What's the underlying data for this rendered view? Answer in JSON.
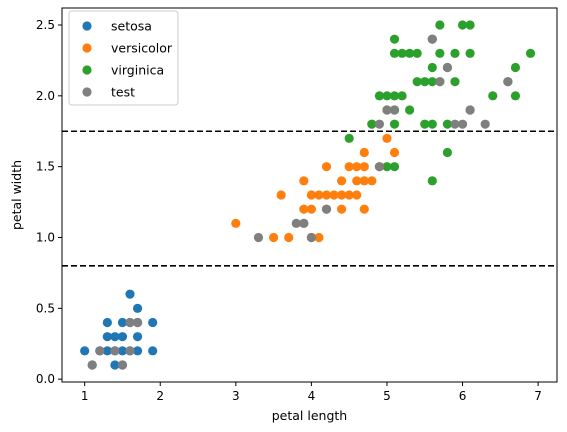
{
  "chart_data": {
    "type": "scatter",
    "title": "",
    "xlabel": "petal length",
    "ylabel": "petal width",
    "xlim": [
      0.7,
      7.25
    ],
    "ylim": [
      -0.02,
      2.62
    ],
    "xticks": [
      1,
      2,
      3,
      4,
      5,
      6,
      7
    ],
    "yticks": [
      0.0,
      0.5,
      1.0,
      1.5,
      2.0,
      2.5
    ],
    "grid": false,
    "legend": "top-left",
    "hlines": [
      {
        "y": 0.8,
        "style": "dashed",
        "color": "#000000"
      },
      {
        "y": 1.75,
        "style": "dashed",
        "color": "#000000"
      }
    ],
    "series": [
      {
        "name": "setosa",
        "color": "#1f77b4",
        "points": [
          [
            1.0,
            0.2
          ],
          [
            1.3,
            0.2
          ],
          [
            1.3,
            0.3
          ],
          [
            1.3,
            0.4
          ],
          [
            1.4,
            0.1
          ],
          [
            1.4,
            0.2
          ],
          [
            1.4,
            0.3
          ],
          [
            1.5,
            0.1
          ],
          [
            1.5,
            0.2
          ],
          [
            1.5,
            0.3
          ],
          [
            1.5,
            0.4
          ],
          [
            1.6,
            0.2
          ],
          [
            1.6,
            0.4
          ],
          [
            1.6,
            0.6
          ],
          [
            1.7,
            0.2
          ],
          [
            1.7,
            0.3
          ],
          [
            1.7,
            0.4
          ],
          [
            1.7,
            0.5
          ],
          [
            1.9,
            0.2
          ],
          [
            1.9,
            0.4
          ],
          [
            1.2,
            0.2
          ],
          [
            1.1,
            0.1
          ]
        ]
      },
      {
        "name": "versicolor",
        "color": "#ff7f0e",
        "points": [
          [
            3.0,
            1.1
          ],
          [
            3.5,
            1.0
          ],
          [
            3.6,
            1.3
          ],
          [
            3.7,
            1.0
          ],
          [
            3.9,
            1.1
          ],
          [
            3.9,
            1.2
          ],
          [
            3.9,
            1.4
          ],
          [
            4.0,
            1.0
          ],
          [
            4.0,
            1.2
          ],
          [
            4.0,
            1.3
          ],
          [
            4.1,
            1.0
          ],
          [
            4.1,
            1.3
          ],
          [
            4.2,
            1.2
          ],
          [
            4.2,
            1.3
          ],
          [
            4.2,
            1.5
          ],
          [
            4.3,
            1.3
          ],
          [
            4.4,
            1.2
          ],
          [
            4.4,
            1.3
          ],
          [
            4.4,
            1.4
          ],
          [
            4.5,
            1.3
          ],
          [
            4.5,
            1.5
          ],
          [
            4.6,
            1.3
          ],
          [
            4.6,
            1.4
          ],
          [
            4.6,
            1.5
          ],
          [
            4.7,
            1.2
          ],
          [
            4.7,
            1.4
          ],
          [
            4.7,
            1.5
          ],
          [
            4.7,
            1.6
          ],
          [
            4.8,
            1.4
          ],
          [
            4.8,
            1.8
          ],
          [
            4.9,
            1.5
          ],
          [
            5.0,
            1.7
          ],
          [
            5.1,
            1.6
          ]
        ]
      },
      {
        "name": "virginica",
        "color": "#2ca02c",
        "points": [
          [
            4.5,
            1.7
          ],
          [
            4.8,
            1.8
          ],
          [
            4.9,
            2.0
          ],
          [
            5.0,
            1.5
          ],
          [
            5.0,
            1.9
          ],
          [
            5.0,
            2.0
          ],
          [
            5.1,
            1.5
          ],
          [
            5.1,
            1.8
          ],
          [
            5.1,
            1.9
          ],
          [
            5.1,
            2.0
          ],
          [
            5.1,
            2.3
          ],
          [
            5.1,
            2.4
          ],
          [
            5.2,
            2.0
          ],
          [
            5.2,
            2.3
          ],
          [
            5.3,
            1.9
          ],
          [
            5.3,
            2.3
          ],
          [
            5.4,
            2.1
          ],
          [
            5.4,
            2.3
          ],
          [
            5.5,
            1.8
          ],
          [
            5.5,
            2.1
          ],
          [
            5.6,
            1.4
          ],
          [
            5.6,
            1.8
          ],
          [
            5.6,
            2.1
          ],
          [
            5.6,
            2.2
          ],
          [
            5.6,
            2.4
          ],
          [
            5.7,
            2.1
          ],
          [
            5.7,
            2.3
          ],
          [
            5.7,
            2.5
          ],
          [
            5.8,
            1.6
          ],
          [
            5.8,
            1.8
          ],
          [
            5.8,
            2.2
          ],
          [
            5.9,
            2.1
          ],
          [
            5.9,
            2.3
          ],
          [
            6.0,
            2.5
          ],
          [
            6.1,
            1.9
          ],
          [
            6.1,
            2.3
          ],
          [
            6.1,
            2.5
          ],
          [
            6.4,
            2.0
          ],
          [
            6.6,
            2.1
          ],
          [
            6.7,
            2.0
          ],
          [
            6.7,
            2.2
          ],
          [
            6.9,
            2.3
          ]
        ]
      },
      {
        "name": "test",
        "color": "#7f7f7f",
        "points": [
          [
            1.1,
            0.1
          ],
          [
            1.2,
            0.2
          ],
          [
            1.4,
            0.2
          ],
          [
            1.5,
            0.1
          ],
          [
            1.6,
            0.2
          ],
          [
            1.6,
            0.4
          ],
          [
            1.7,
            0.4
          ],
          [
            3.3,
            1.0
          ],
          [
            3.8,
            1.1
          ],
          [
            3.9,
            1.1
          ],
          [
            4.0,
            1.0
          ],
          [
            4.2,
            1.2
          ],
          [
            4.9,
            1.5
          ],
          [
            4.9,
            1.8
          ],
          [
            5.0,
            1.9
          ],
          [
            5.1,
            1.9
          ],
          [
            5.6,
            2.4
          ],
          [
            5.7,
            2.1
          ],
          [
            5.8,
            2.2
          ],
          [
            5.9,
            1.8
          ],
          [
            6.0,
            1.8
          ],
          [
            6.1,
            1.9
          ],
          [
            6.3,
            1.8
          ],
          [
            6.6,
            2.1
          ]
        ]
      }
    ]
  }
}
